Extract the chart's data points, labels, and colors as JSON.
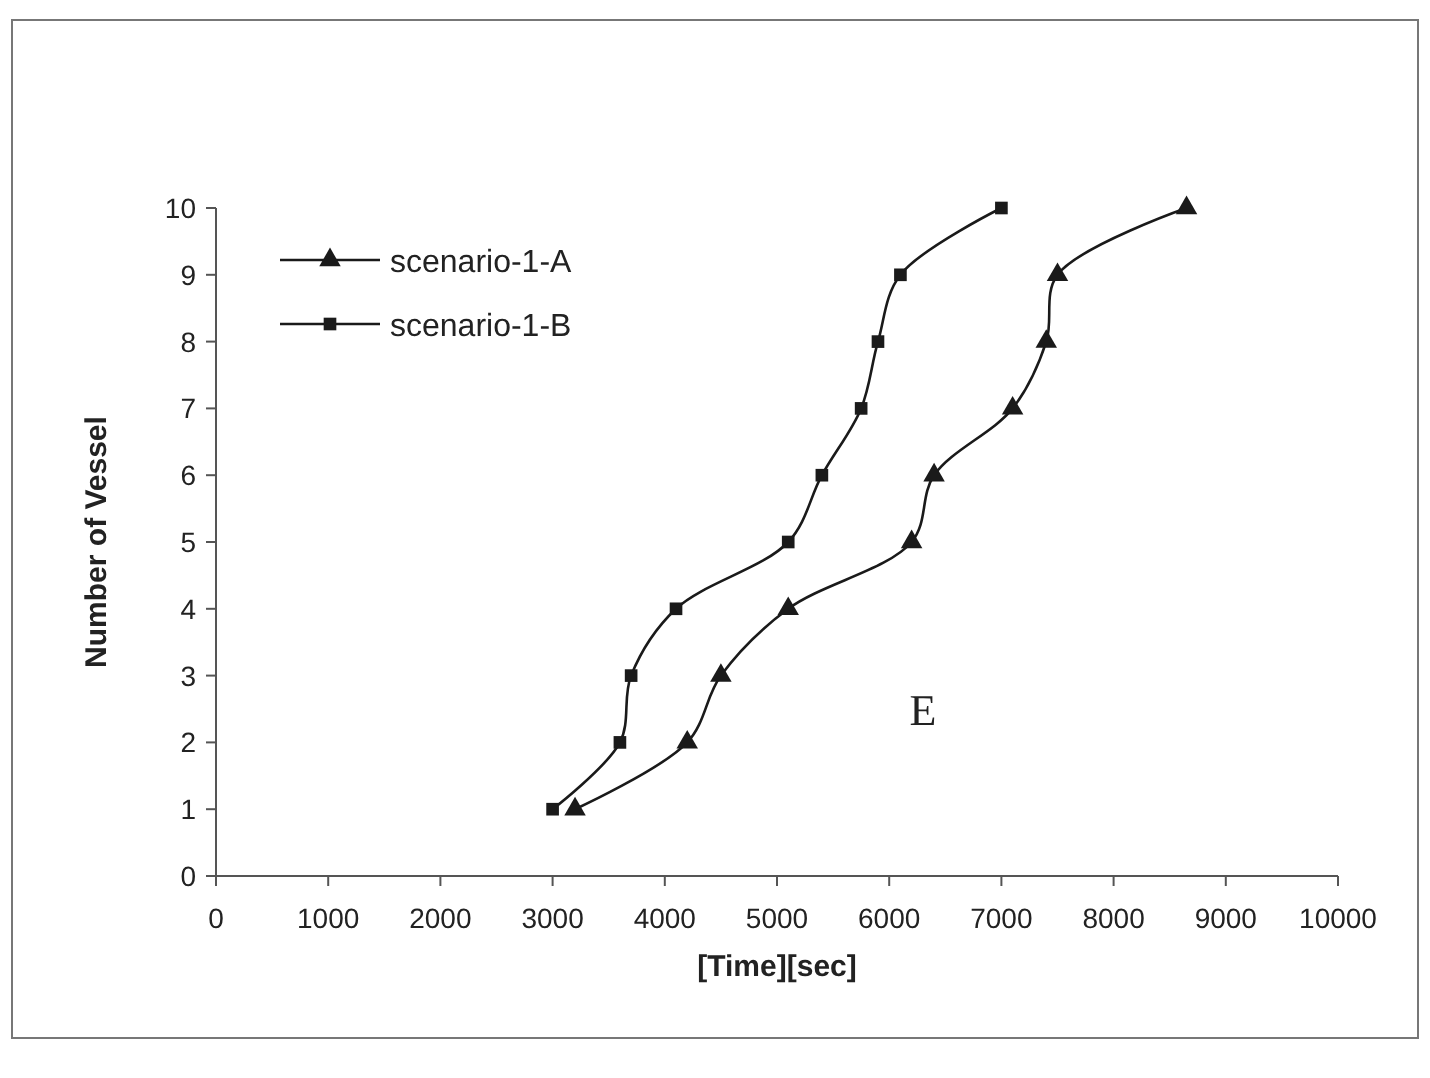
{
  "chart_data": {
    "type": "line",
    "xlabel": "[Time][sec]",
    "ylabel": "Number of Vessel",
    "xlim": [
      0,
      10000
    ],
    "xticks": [
      0,
      1000,
      2000,
      3000,
      4000,
      5000,
      6000,
      7000,
      8000,
      9000,
      10000
    ],
    "ylim": [
      0,
      10
    ],
    "yticks": [
      0,
      1,
      2,
      3,
      4,
      5,
      6,
      7,
      8,
      9,
      10
    ],
    "grid": false,
    "legend": "top left",
    "line_style": "solid",
    "annotations": [
      "E"
    ],
    "series": [
      {
        "name": "scenario-1-A",
        "color": "#1a1a1a",
        "marker": "triangle",
        "x": [
          3200,
          4200,
          4500,
          5100,
          6200,
          6400,
          7100,
          7400,
          7500,
          8650
        ],
        "values": [
          1,
          2,
          3,
          4,
          5,
          6,
          7,
          8,
          9,
          10
        ]
      },
      {
        "name": "scenario-1-B",
        "color": "#1a1a1a",
        "marker": "square",
        "x": [
          3000,
          3600,
          3700,
          4100,
          5100,
          5400,
          5750,
          5900,
          6100,
          7000
        ],
        "values": [
          1,
          2,
          3,
          4,
          5,
          6,
          7,
          8,
          9,
          10
        ]
      }
    ]
  }
}
